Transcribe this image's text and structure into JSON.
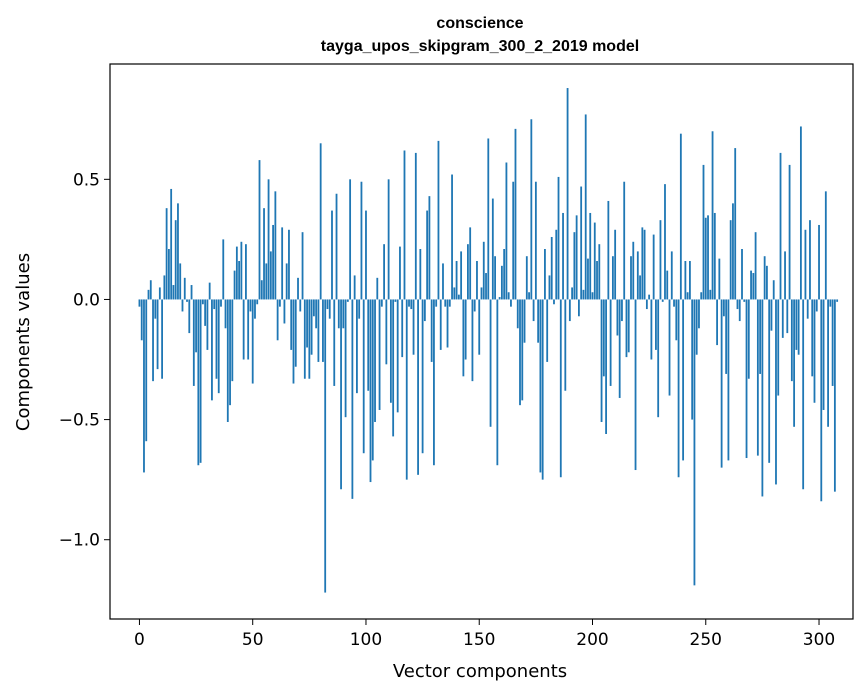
{
  "chart_data": {
    "type": "bar",
    "title": "conscience",
    "subtitle": "tayga_upos_skipgram_300_2_2019 model",
    "xlabel": "Vector components",
    "ylabel": "Components values",
    "xlim": [
      -13,
      315
    ],
    "ylim": [
      -1.33,
      0.98
    ],
    "xticks": [
      0,
      50,
      100,
      150,
      200,
      250,
      300
    ],
    "xtick_labels": [
      "0",
      "50",
      "100",
      "150",
      "200",
      "250",
      "300"
    ],
    "yticks": [
      0.5,
      0.0,
      -0.5,
      -1.0
    ],
    "ytick_labels": [
      "0.5",
      "0.0",
      "−0.5",
      "−1.0"
    ],
    "bar_color": "#1f77b4",
    "grid": false,
    "values": [
      -0.03,
      -0.17,
      -0.72,
      -0.59,
      0.04,
      0.08,
      -0.34,
      -0.08,
      -0.29,
      0.05,
      -0.33,
      0.1,
      0.38,
      0.21,
      0.46,
      0.06,
      0.33,
      0.4,
      0.15,
      -0.05,
      0.09,
      -0.01,
      -0.14,
      0.06,
      -0.36,
      -0.22,
      -0.69,
      -0.68,
      -0.02,
      -0.11,
      -0.21,
      0.07,
      -0.42,
      -0.04,
      -0.33,
      -0.39,
      -0.03,
      0.25,
      -0.12,
      -0.51,
      -0.44,
      -0.34,
      0.12,
      0.22,
      0.16,
      0.24,
      -0.25,
      0.23,
      -0.25,
      -0.05,
      -0.35,
      -0.08,
      -0.02,
      0.58,
      0.08,
      0.38,
      0.15,
      0.5,
      0.2,
      0.31,
      0.45,
      -0.17,
      -0.03,
      0.3,
      -0.1,
      0.15,
      0.29,
      -0.21,
      -0.35,
      -0.28,
      0.09,
      -0.05,
      0.28,
      -0.33,
      -0.2,
      -0.33,
      -0.23,
      -0.07,
      -0.12,
      -0.26,
      0.65,
      -0.26,
      -1.22,
      -0.04,
      -0.08,
      0.37,
      -0.36,
      0.44,
      -0.12,
      -0.79,
      -0.12,
      -0.49,
      -0.01,
      0.5,
      -0.83,
      0.1,
      -0.39,
      -0.08,
      0.49,
      -0.64,
      0.37,
      -0.38,
      -0.76,
      -0.67,
      -0.51,
      0.09,
      -0.46,
      -0.03,
      0.23,
      -0.27,
      0.5,
      -0.43,
      -0.57,
      -0.01,
      -0.47,
      0.22,
      -0.24,
      0.62,
      -0.75,
      -0.03,
      -0.04,
      -0.23,
      0.61,
      -0.73,
      0.21,
      -0.64,
      -0.09,
      0.37,
      0.43,
      -0.26,
      -0.69,
      -0.03,
      0.66,
      -0.21,
      0.15,
      -0.03,
      -0.2,
      -0.03,
      0.52,
      0.05,
      0.16,
      0.02,
      0.2,
      -0.32,
      -0.25,
      0.23,
      0.3,
      -0.34,
      -0.05,
      0.16,
      -0.23,
      0.05,
      0.24,
      0.11,
      0.67,
      -0.53,
      0.42,
      0.18,
      -0.69,
      0.01,
      0.14,
      0.21,
      0.57,
      0.03,
      -0.03,
      0.49,
      0.71,
      -0.12,
      -0.44,
      -0.42,
      -0.18,
      0.18,
      0.03,
      0.75,
      -0.09,
      0.49,
      -0.18,
      -0.72,
      -0.75,
      0.21,
      -0.26,
      0.1,
      0.26,
      -0.02,
      0.29,
      0.51,
      -0.74,
      0.36,
      -0.38,
      0.88,
      -0.09,
      0.05,
      0.28,
      0.35,
      -0.07,
      0.47,
      0.04,
      0.77,
      0.17,
      0.36,
      0.03,
      0.32,
      0.16,
      0.23,
      -0.51,
      -0.32,
      -0.56,
      0.41,
      -0.36,
      0.18,
      0.29,
      -0.15,
      -0.41,
      -0.09,
      0.49,
      -0.24,
      -0.22,
      0.18,
      0.24,
      -0.71,
      0.2,
      0.1,
      0.3,
      0.29,
      -0.04,
      0.02,
      -0.25,
      0.27,
      -0.21,
      -0.49,
      0.33,
      -0.01,
      0.48,
      0.12,
      -0.4,
      0.2,
      -0.03,
      -0.17,
      -0.74,
      0.69,
      -0.67,
      0.16,
      0.03,
      0.16,
      -0.5,
      -1.19,
      -0.23,
      -0.12,
      0.03,
      0.56,
      0.34,
      0.35,
      0.04,
      0.7,
      0.36,
      -0.19,
      0.17,
      -0.7,
      -0.07,
      -0.31,
      -0.67,
      0.33,
      0.4,
      0.63,
      -0.04,
      -0.09,
      0.21,
      -0.01,
      -0.66,
      -0.33,
      0.12,
      0.11,
      0.28,
      -0.65,
      -0.31,
      -0.82,
      0.18,
      0.14,
      -0.68,
      -0.13,
      0.08,
      -0.77,
      -0.4,
      0.61,
      -0.16,
      0.2,
      -0.14,
      0.56,
      -0.34,
      -0.53,
      -0.21,
      -0.23,
      0.72,
      -0.79,
      0.29,
      -0.08,
      0.33,
      -0.32,
      -0.43,
      -0.05,
      0.31,
      -0.84,
      -0.46,
      0.45,
      -0.53,
      -0.03,
      -0.36,
      -0.8,
      -0.01
    ]
  }
}
